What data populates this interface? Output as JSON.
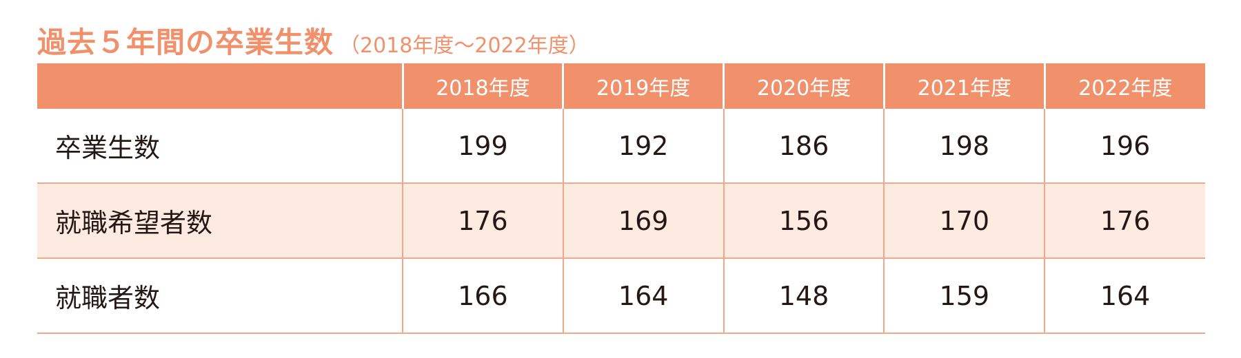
{
  "title": {
    "main": "過去５年間の卒業生数",
    "sub": "（2018年度～2022年度）"
  },
  "colors": {
    "accent": "#f0916b",
    "row_shade": "#fdebe2",
    "grid_line": "#f0a88a"
  },
  "chart_data": {
    "type": "table",
    "title": "過去５年間の卒業生数",
    "subtitle": "（2018年度～2022年度）",
    "header": [
      "",
      "2018年度",
      "2019年度",
      "2020年度",
      "2021年度",
      "2022年度"
    ],
    "rows": [
      {
        "label": "卒業生数",
        "values": [
          "199",
          "192",
          "186",
          "198",
          "196"
        ]
      },
      {
        "label": "就職希望者数",
        "values": [
          "176",
          "169",
          "156",
          "170",
          "176"
        ]
      },
      {
        "label": "就職者数",
        "values": [
          "166",
          "164",
          "148",
          "159",
          "164"
        ]
      }
    ]
  }
}
